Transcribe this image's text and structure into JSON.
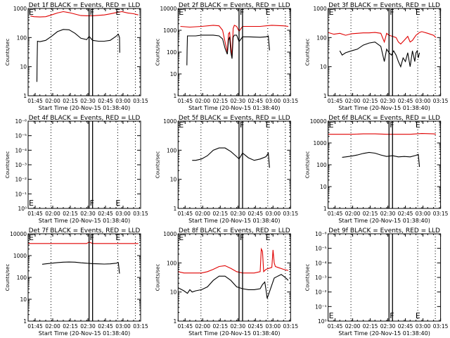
{
  "chart_data": [
    {
      "type": "line",
      "id": "1f",
      "title": "Det 1f BLACK = Events, RED = LLD",
      "xlabel": "Start Time (20-Nov-15 01:38:40)",
      "ylabel": "Counts/sec",
      "yscale": "log",
      "ylim": [
        1,
        1000
      ],
      "ytick_labels": [
        "1",
        "10",
        "100",
        "1000"
      ],
      "ytick_values": [
        1,
        10,
        100,
        1000
      ],
      "series": [
        {
          "name": "LLD",
          "color": "#e00000",
          "x": [
            2,
            5,
            10,
            15,
            20,
            25,
            30,
            35,
            40,
            45,
            50,
            55,
            60,
            65,
            70,
            75,
            80,
            85,
            90,
            94
          ],
          "y": [
            550,
            520,
            510,
            520,
            600,
            700,
            780,
            720,
            640,
            570,
            560,
            560,
            580,
            600,
            650,
            720,
            780,
            700,
            660,
            600
          ]
        },
        {
          "name": "Events",
          "color": "#000000",
          "x": [
            7.5,
            7.7,
            8,
            10,
            15,
            20,
            25,
            30,
            35,
            40,
            45,
            50,
            52,
            55,
            60,
            65,
            70,
            75,
            77,
            78,
            78.2
          ],
          "y": [
            3,
            15,
            75,
            72,
            80,
            110,
            160,
            190,
            185,
            140,
            95,
            85,
            110,
            80,
            75,
            75,
            80,
            110,
            130,
            100,
            30
          ]
        }
      ],
      "markers": [
        {
          "label": "E",
          "x": 0
        },
        {
          "label": "F",
          "x": 52
        },
        {
          "label": "E",
          "x": 74
        }
      ]
    },
    {
      "type": "line",
      "id": "2f",
      "title": "Det 2f BLACK = Events, RED = LLD",
      "xlabel": "Start Time (20-Nov-15 01:38:40)",
      "ylabel": "Counts/sec",
      "yscale": "log",
      "ylim": [
        1,
        10000
      ],
      "ytick_labels": [
        "1",
        "10",
        "100",
        "1000",
        "10000"
      ],
      "ytick_values": [
        1,
        10,
        100,
        1000,
        10000
      ],
      "series": [
        {
          "name": "LLD",
          "color": "#e00000",
          "x": [
            2,
            10,
            20,
            30,
            35,
            38,
            40,
            42,
            43,
            44,
            45,
            46,
            47,
            48,
            50,
            52,
            55,
            60,
            70,
            80,
            90,
            94
          ],
          "y": [
            1500,
            1400,
            1500,
            1700,
            1600,
            1000,
            300,
            100,
            700,
            800,
            200,
            60,
            1200,
            1700,
            1500,
            900,
            1500,
            1500,
            1500,
            1700,
            1600,
            1500
          ],
          "markers": []
        },
        {
          "name": "Events",
          "color": "#000000",
          "x": [
            7.5,
            7.7,
            8,
            15,
            20,
            30,
            35,
            38,
            40,
            42,
            43,
            44,
            45,
            46,
            47,
            48,
            50,
            52,
            55,
            60,
            70,
            75,
            77,
            78
          ],
          "y": [
            25,
            120,
            550,
            550,
            600,
            600,
            550,
            400,
            150,
            80,
            350,
            500,
            100,
            50,
            480,
            600,
            600,
            300,
            500,
            500,
            480,
            500,
            550,
            120
          ]
        }
      ],
      "markers": [
        {
          "label": "E",
          "x": 0
        },
        {
          "label": "F",
          "x": 52
        },
        {
          "label": "E",
          "x": 74
        }
      ]
    },
    {
      "type": "line",
      "id": "3f",
      "title": "Det 3f BLACK = Events, RED = LLD",
      "xlabel": "Start Time (20-Nov-15 01:38:40)",
      "ylabel": "Counts/sec",
      "yscale": "log",
      "ylim": [
        1,
        1000
      ],
      "ytick_labels": [
        "1",
        "10",
        "100",
        "1000"
      ],
      "ytick_values": [
        1,
        10,
        100,
        1000
      ],
      "series": [
        {
          "name": "LLD",
          "color": "#e00000",
          "x": [
            0,
            5,
            10,
            15,
            20,
            25,
            30,
            35,
            40,
            45,
            48,
            50,
            52,
            55,
            58,
            60,
            62,
            65,
            68,
            70,
            72,
            75,
            78,
            80,
            85,
            90,
            92
          ],
          "y": [
            150,
            130,
            140,
            120,
            135,
            140,
            145,
            145,
            150,
            140,
            70,
            140,
            120,
            110,
            100,
            70,
            60,
            80,
            110,
            70,
            80,
            120,
            150,
            160,
            140,
            120,
            100
          ],
          "markers": []
        },
        {
          "name": "Events",
          "color": "#000000",
          "x": [
            10,
            12,
            15,
            20,
            25,
            30,
            35,
            40,
            45,
            48,
            50,
            52,
            54,
            56,
            58,
            60,
            62,
            64,
            66,
            68,
            70,
            72,
            74,
            75,
            76,
            77,
            78
          ],
          "y": [
            35,
            25,
            30,
            35,
            40,
            55,
            65,
            70,
            50,
            15,
            40,
            30,
            25,
            35,
            25,
            15,
            10,
            20,
            15,
            30,
            10,
            35,
            15,
            30,
            35,
            20,
            30
          ]
        }
      ],
      "markers": [
        {
          "label": "E",
          "x": 0
        },
        {
          "label": "F",
          "x": 52
        },
        {
          "label": "E",
          "x": 74
        }
      ]
    },
    {
      "type": "line",
      "id": "4f",
      "title": "Det 4f BLACK = Events, RED = LLD",
      "xlabel": "Start Time (20-Nov-15 01:38:40)",
      "ylabel": "Counts/sec",
      "yscale": "log",
      "ylim": [
        0,
        6
      ],
      "ytick_labels": [
        "10⁰",
        "10⁻¹",
        "10⁻²",
        "10⁻³",
        "10⁻⁴",
        "10⁻⁵",
        "10⁻⁶"
      ],
      "ytick_values": [
        0,
        1,
        2,
        3,
        4,
        5,
        6
      ],
      "series": [],
      "markers": [
        {
          "label": "E",
          "x": 0
        },
        {
          "label": "F",
          "x": 52
        },
        {
          "label": "E",
          "x": 74
        }
      ]
    },
    {
      "type": "line",
      "id": "5f",
      "title": "Det 5f BLACK = Events, RED = LLD",
      "xlabel": "Start Time (20-Nov-15 01:38:40)",
      "ylabel": "Counts/sec",
      "yscale": "log",
      "ylim": [
        1,
        1000
      ],
      "ytick_labels": [
        "1",
        "10",
        "100",
        "1000"
      ],
      "ytick_values": [
        1,
        10,
        100,
        1000
      ],
      "series": [
        {
          "name": "LLD",
          "color": "#e00000",
          "x": [
            0,
            25,
            50,
            70
          ],
          "y": [
            1000,
            1000,
            1000,
            1000
          ]
        },
        {
          "name": "Events",
          "color": "#000000",
          "x": [
            12,
            15,
            20,
            25,
            30,
            35,
            40,
            45,
            50,
            52,
            55,
            60,
            65,
            70,
            75,
            77,
            78
          ],
          "y": [
            45,
            45,
            50,
            65,
            100,
            120,
            120,
            90,
            60,
            50,
            80,
            55,
            45,
            50,
            60,
            80,
            25
          ]
        }
      ],
      "markers": [
        {
          "label": "E",
          "x": 0
        },
        {
          "label": "F",
          "x": 52
        },
        {
          "label": "E",
          "x": 74
        }
      ]
    },
    {
      "type": "line",
      "id": "6f",
      "title": "Det 6f BLACK = Events, RED = LLD",
      "xlabel": "Start Time (20-Nov-15 01:38:40)",
      "ylabel": "Counts/sec",
      "yscale": "log",
      "ylim": [
        1,
        10000
      ],
      "ytick_labels": [
        "1",
        "10",
        "100",
        "1000",
        "10000"
      ],
      "ytick_values": [
        1,
        10,
        100,
        1000,
        10000
      ],
      "series": [
        {
          "name": "LLD",
          "color": "#e00000",
          "x": [
            0,
            20,
            30,
            40,
            50,
            60,
            70,
            80,
            90,
            92
          ],
          "y": [
            2500,
            2500,
            2600,
            2600,
            2500,
            2500,
            2500,
            2700,
            2600,
            2500
          ]
        },
        {
          "name": "Events",
          "color": "#000000",
          "x": [
            12,
            15,
            20,
            25,
            30,
            35,
            40,
            45,
            50,
            55,
            60,
            65,
            70,
            75,
            77,
            78
          ],
          "y": [
            220,
            230,
            250,
            280,
            330,
            370,
            340,
            280,
            240,
            260,
            230,
            240,
            230,
            270,
            300,
            80
          ]
        }
      ],
      "markers": [
        {
          "label": "E",
          "x": 0
        },
        {
          "label": "F",
          "x": 52
        },
        {
          "label": "E",
          "x": 74
        }
      ]
    },
    {
      "type": "line",
      "id": "7f",
      "title": "Det 7f BLACK = Events, RED = LLD",
      "xlabel": "Start Time (20-Nov-15 01:38:40)",
      "ylabel": "Counts/sec",
      "yscale": "log",
      "ylim": [
        1,
        10000
      ],
      "ytick_labels": [
        "1",
        "10",
        "100",
        "1000",
        "10000"
      ],
      "ytick_values": [
        1,
        10,
        100,
        1000,
        10000
      ],
      "series": [
        {
          "name": "LLD",
          "color": "#e00000",
          "x": [
            0,
            30,
            50,
            52,
            55,
            94
          ],
          "y": [
            3600,
            3600,
            3600,
            4200,
            3600,
            3600
          ]
        },
        {
          "name": "Events",
          "color": "#000000",
          "x": [
            12,
            15,
            20,
            25,
            30,
            35,
            40,
            45,
            50,
            55,
            60,
            65,
            70,
            75,
            77,
            78
          ],
          "y": [
            400,
            420,
            450,
            480,
            500,
            510,
            500,
            470,
            450,
            430,
            420,
            410,
            420,
            450,
            480,
            150
          ]
        }
      ],
      "markers": [
        {
          "label": "E",
          "x": 0
        },
        {
          "label": "F",
          "x": 52
        },
        {
          "label": "E",
          "x": 74
        }
      ]
    },
    {
      "type": "line",
      "id": "8f",
      "title": "Det 8f BLACK = Events, RED = LLD",
      "xlabel": "Start Time (20-Nov-15 01:38:40)",
      "ylabel": "Counts/sec",
      "yscale": "log",
      "ylim": [
        1,
        1000
      ],
      "ytick_labels": [
        "1",
        "10",
        "100",
        "1000"
      ],
      "ytick_values": [
        1,
        10,
        100,
        1000
      ],
      "series": [
        {
          "name": "LLD",
          "color": "#e00000",
          "x": [
            0,
            5,
            10,
            15,
            20,
            25,
            30,
            35,
            40,
            45,
            50,
            55,
            60,
            65,
            70,
            71,
            72,
            73,
            75,
            80,
            81,
            82,
            83,
            85,
            90,
            94
          ],
          "y": [
            50,
            45,
            45,
            45,
            45,
            50,
            60,
            75,
            80,
            65,
            50,
            45,
            45,
            45,
            50,
            300,
            250,
            50,
            60,
            70,
            280,
            100,
            75,
            70,
            60,
            55
          ]
        },
        {
          "name": "Events",
          "color": "#000000",
          "x": [
            0,
            5,
            8,
            10,
            12,
            15,
            20,
            25,
            30,
            35,
            40,
            45,
            50,
            55,
            60,
            65,
            70,
            72,
            74,
            75,
            76,
            82,
            85,
            88,
            90,
            92,
            94
          ],
          "y": [
            14,
            11,
            9,
            12,
            10,
            11,
            12,
            15,
            25,
            35,
            35,
            25,
            15,
            13,
            12,
            12,
            13,
            18,
            22,
            12,
            6,
            30,
            35,
            40,
            35,
            30,
            25
          ]
        }
      ],
      "markers": [
        {
          "label": "E",
          "x": 0
        },
        {
          "label": "F",
          "x": 52
        },
        {
          "label": "E",
          "x": 74
        }
      ]
    },
    {
      "type": "line",
      "id": "9f",
      "title": "Det 9f BLACK = Events, RED = LLD",
      "xlabel": "Start Time (20-Nov-15 01:38:40)",
      "ylabel": "Counts/sec",
      "yscale": "log",
      "ylim": [
        0,
        6
      ],
      "ytick_labels": [
        "10⁰",
        "10⁻¹",
        "10⁻²",
        "10⁻³",
        "10⁻⁴",
        "10⁻⁵",
        "10⁻⁶"
      ],
      "ytick_values": [
        0,
        1,
        2,
        3,
        4,
        5,
        6
      ],
      "series": [],
      "markers": [
        {
          "label": "E",
          "x": 0
        },
        {
          "label": "F",
          "x": 52
        },
        {
          "label": "E",
          "x": 74
        }
      ]
    }
  ],
  "shared": {
    "x_range_minutes": [
      0,
      96
    ],
    "x_ticks": [
      {
        "label": "01:45",
        "x": 6
      },
      {
        "label": "02:00",
        "x": 21
      },
      {
        "label": "02:15",
        "x": 36
      },
      {
        "label": "02:30",
        "x": 51
      },
      {
        "label": "02:45",
        "x": 66
      },
      {
        "label": "03:00",
        "x": 81
      },
      {
        "label": "03:15",
        "x": 96
      }
    ],
    "dotted_lines_x": [
      19.5,
      76.5,
      91.5
    ],
    "f_bars_x": [
      52,
      55
    ]
  }
}
